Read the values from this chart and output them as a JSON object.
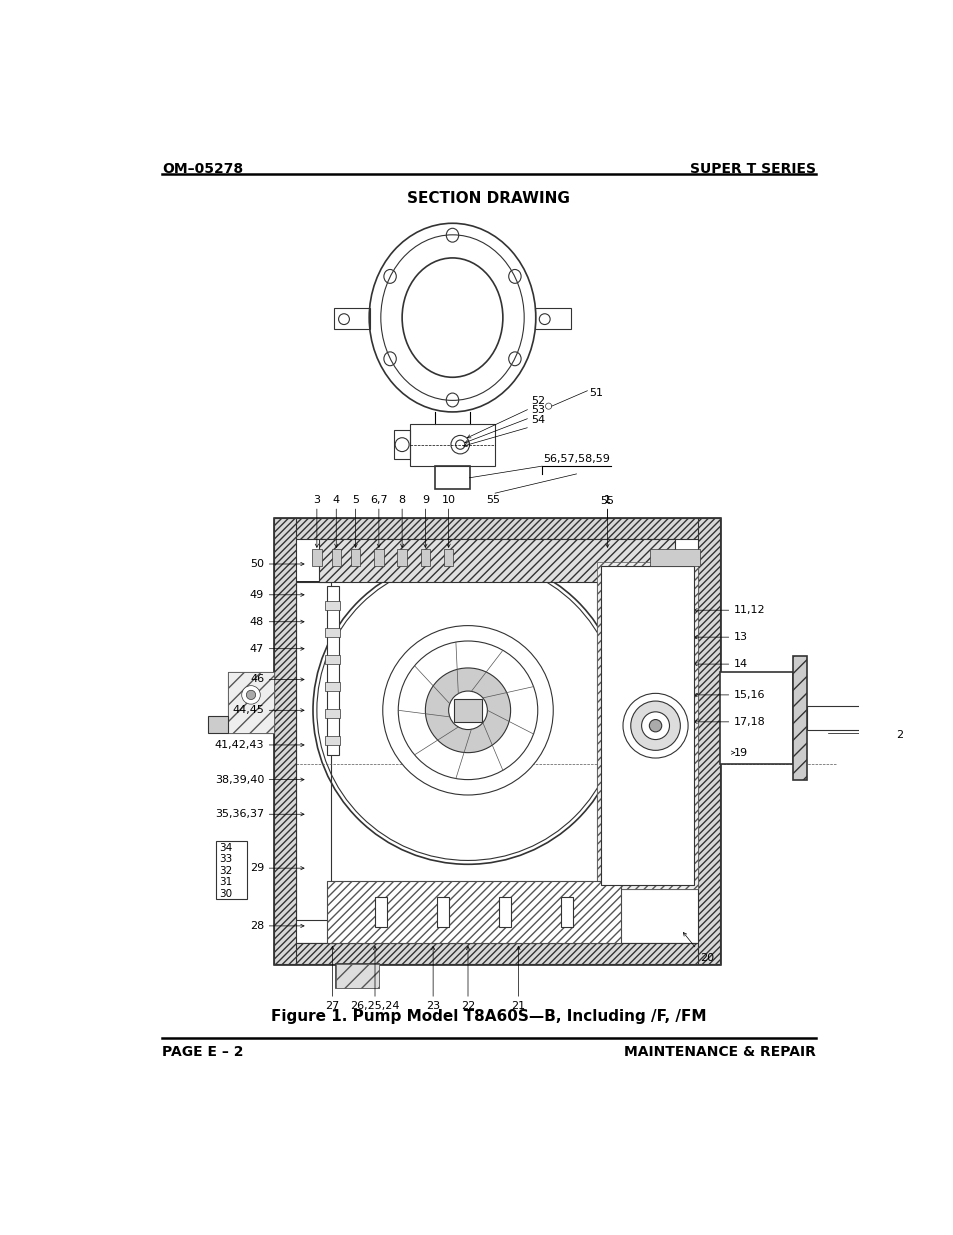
{
  "header_left": "OM–05278",
  "header_right": "SUPER T SERIES",
  "footer_left": "PAGE E – 2",
  "footer_right": "MAINTENANCE & REPAIR",
  "section_title": "SECTION DRAWING",
  "figure_caption": "Figure 1. Pump Model T8A60S—B, Including /F, /FM",
  "bg_color": "#ffffff",
  "text_color": "#000000",
  "line_color": "#000000",
  "hatch_color": "#000000"
}
